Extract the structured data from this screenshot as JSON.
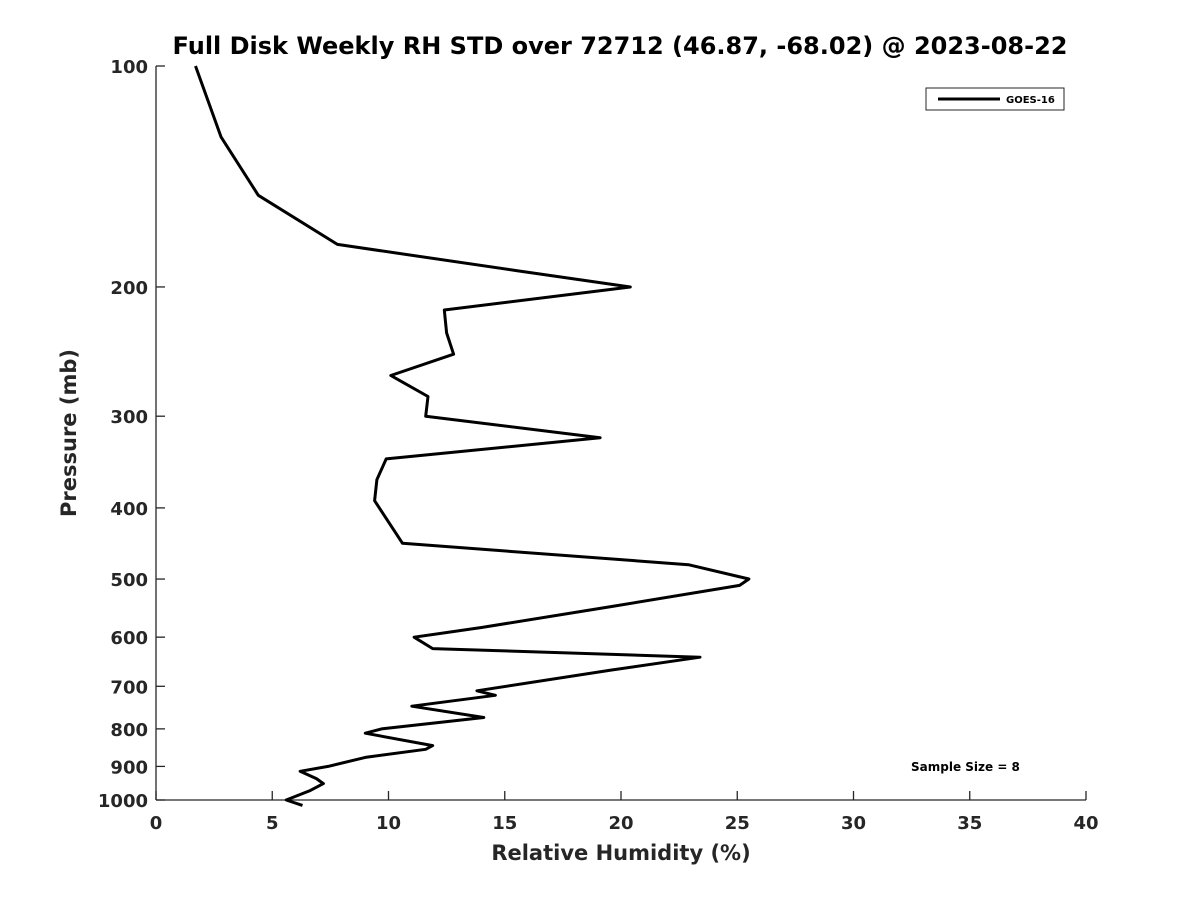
{
  "chart_data": {
    "type": "line",
    "title": "Full Disk Weekly RH STD over 72712 (46.87, -68.02) @ 2023-08-22",
    "xlabel": "Relative Humidity (%)",
    "ylabel": "Pressure (mb)",
    "xlim": [
      0,
      40
    ],
    "ylim": [
      100,
      1000
    ],
    "yscale": "log",
    "y_reversed": true,
    "xticks": [
      0,
      5,
      10,
      15,
      20,
      25,
      30,
      35,
      40
    ],
    "yticks": [
      100,
      200,
      300,
      400,
      500,
      600,
      700,
      800,
      900,
      1000
    ],
    "grid": false,
    "legend": {
      "position": "top-right",
      "entries": [
        "GOES-16"
      ]
    },
    "annotation": "Sample Size = 8",
    "series": [
      {
        "name": "GOES-16",
        "color": "#000000",
        "points": [
          [
            1.7,
            100
          ],
          [
            2.8,
            125
          ],
          [
            4.4,
            150
          ],
          [
            7.8,
            175
          ],
          [
            15.5,
            190
          ],
          [
            20.4,
            200
          ],
          [
            12.4,
            215
          ],
          [
            12.5,
            231
          ],
          [
            12.8,
            247
          ],
          [
            10.1,
            264
          ],
          [
            11.7,
            282
          ],
          [
            11.6,
            300
          ],
          [
            19.1,
            321
          ],
          [
            9.9,
            343
          ],
          [
            9.5,
            366
          ],
          [
            9.4,
            391
          ],
          [
            10.0,
            418
          ],
          [
            10.6,
            447
          ],
          [
            22.9,
            478
          ],
          [
            25.5,
            500
          ],
          [
            25.1,
            510
          ],
          [
            19.6,
            545
          ],
          [
            14.0,
            582
          ],
          [
            11.1,
            600
          ],
          [
            11.9,
            622
          ],
          [
            23.4,
            639
          ],
          [
            19.6,
            665
          ],
          [
            13.8,
            710
          ],
          [
            14.6,
            720
          ],
          [
            11.0,
            745
          ],
          [
            14.1,
            772
          ],
          [
            9.7,
            800
          ],
          [
            9.0,
            811
          ],
          [
            11.9,
            843
          ],
          [
            11.6,
            853
          ],
          [
            9.0,
            875
          ],
          [
            7.4,
            900
          ],
          [
            6.2,
            914
          ],
          [
            6.9,
            935
          ],
          [
            7.2,
            950
          ],
          [
            6.6,
            972
          ],
          [
            5.6,
            1000
          ],
          [
            6.3,
            1017
          ]
        ]
      }
    ]
  }
}
